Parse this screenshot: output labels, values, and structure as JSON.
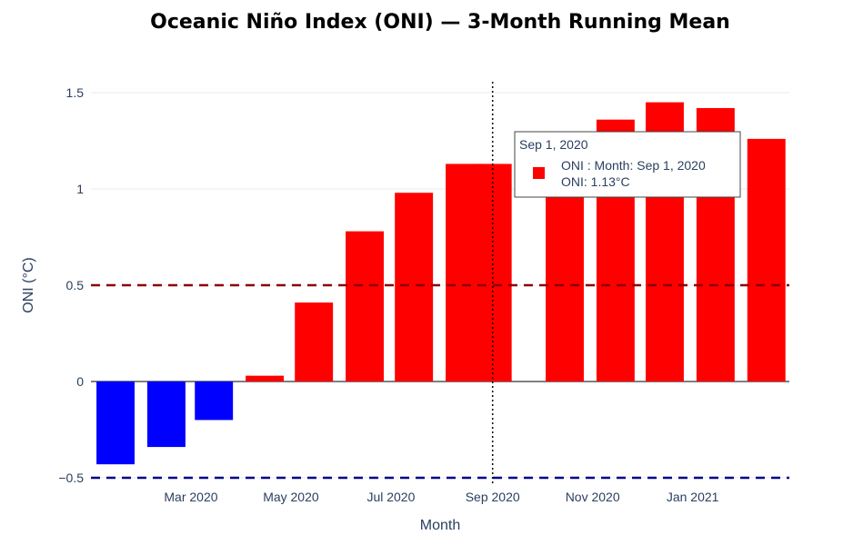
{
  "chart_data": {
    "type": "bar",
    "title": "Oceanic Niño Index (ONI) — 3-Month Running Mean",
    "xlabel": "Month",
    "ylabel": "ONI (°C)",
    "series_name": "ONI",
    "x": [
      "2020-01-15",
      "2020-02-15",
      "2020-03-15",
      "2020-04-15",
      "2020-05-15",
      "2020-06-15",
      "2020-07-15",
      "2020-08-15",
      "2020-09-01",
      "2020-10-15",
      "2020-11-15",
      "2020-12-15",
      "2021-01-15",
      "2021-02-15"
    ],
    "values": [
      -0.43,
      -0.34,
      -0.2,
      0.03,
      0.41,
      0.78,
      0.98,
      1.13,
      1.13,
      1.27,
      1.36,
      1.45,
      1.42,
      1.26
    ],
    "bar_colors": [
      "#0000ff",
      "#0000ff",
      "#0000ff",
      "#ff0000",
      "#ff0000",
      "#ff0000",
      "#ff0000",
      "#ff0000",
      "#ff0000",
      "#ff0000",
      "#ff0000",
      "#ff0000",
      "#ff0000",
      "#ff0000"
    ],
    "ylim": [
      -0.5,
      1.5
    ],
    "yticks": [
      -0.5,
      0,
      0.5,
      1,
      1.5
    ],
    "ytick_labels": [
      "−0.5",
      "0",
      "0.5",
      "1",
      "1.5"
    ],
    "xticks": [
      "2020-03-01",
      "2020-05-01",
      "2020-07-01",
      "2020-09-01",
      "2020-11-01",
      "2021-01-01"
    ],
    "xtick_labels": [
      "Mar 2020",
      "May 2020",
      "Jul 2020",
      "Sep 2020",
      "Nov 2020",
      "Jan 2021"
    ],
    "reference_lines": [
      {
        "y": 0.5,
        "color": "#8b0000",
        "style": "dashed"
      },
      {
        "y": -0.5,
        "color": "#00008b",
        "style": "dashed"
      }
    ],
    "hover": {
      "x": "2020-09-01",
      "header": "Sep 1, 2020",
      "line1": "ONI : Month: Sep 1, 2020",
      "line2": "ONI: 1.13°C"
    },
    "grid": true
  }
}
